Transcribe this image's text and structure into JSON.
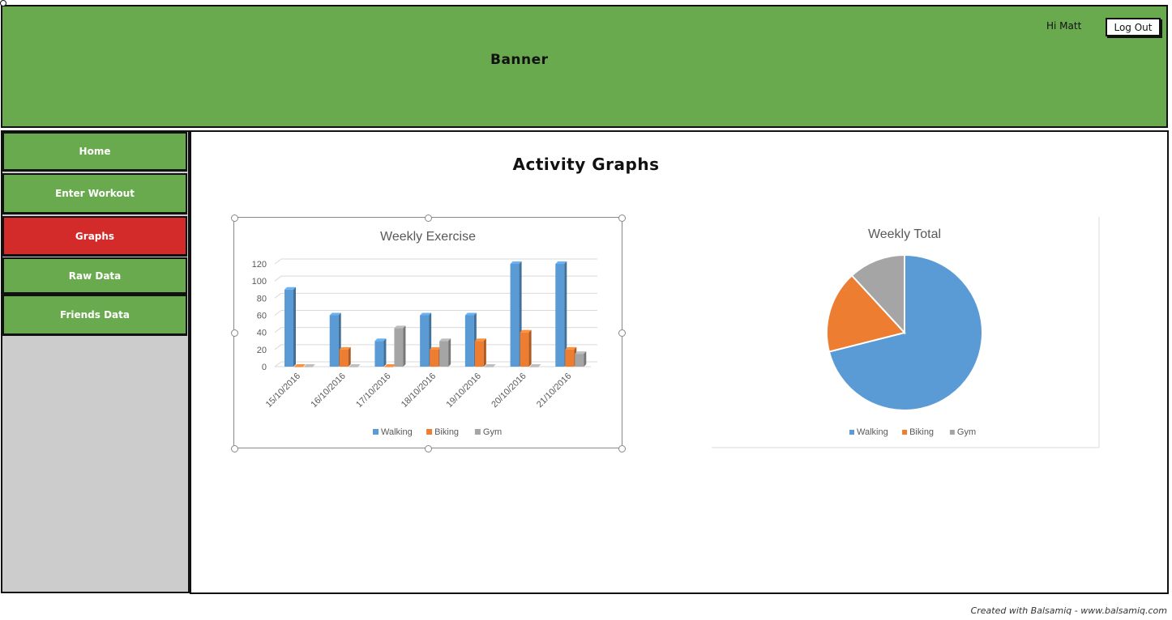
{
  "banner": {
    "title": "Banner",
    "greeting": "Hi Matt",
    "logout_label": "Log Out"
  },
  "sidebar": {
    "items": [
      {
        "label": "Home",
        "active": false
      },
      {
        "label": "Enter Workout",
        "active": false
      },
      {
        "label": "Graphs",
        "active": true
      },
      {
        "label": "Raw Data",
        "active": false
      },
      {
        "label": "Friends Data",
        "active": false
      }
    ]
  },
  "main": {
    "title": "Activity Graphs"
  },
  "colors": {
    "walking": "#5b9bd5",
    "biking": "#ed7d31",
    "gym": "#a5a5a5",
    "banner": "#6aaa4f",
    "active_nav": "#d32a2a"
  },
  "chart_data": [
    {
      "type": "bar",
      "title": "Weekly Exercise",
      "categories": [
        "15/10/2016",
        "16/10/2016",
        "17/10/2016",
        "18/10/2016",
        "19/10/2016",
        "20/10/2016",
        "21/10/2016"
      ],
      "series": [
        {
          "name": "Walking",
          "values": [
            90,
            60,
            30,
            60,
            60,
            120,
            120
          ]
        },
        {
          "name": "Biking",
          "values": [
            0,
            20,
            0,
            20,
            30,
            40,
            20
          ]
        },
        {
          "name": "Gym",
          "values": [
            0,
            0,
            45,
            30,
            0,
            0,
            15
          ]
        }
      ],
      "ylim": [
        0,
        120
      ],
      "yticks": [
        0,
        20,
        40,
        60,
        80,
        100,
        120
      ],
      "grid": true,
      "legend": "bottom"
    },
    {
      "type": "pie",
      "title": "Weekly Total",
      "labels": [
        "Walking",
        "Biking",
        "Gym"
      ],
      "values": [
        540,
        130,
        90
      ],
      "legend": "bottom"
    }
  ],
  "footer": {
    "text": "Created with Balsamiq - www.balsamiq.com"
  }
}
